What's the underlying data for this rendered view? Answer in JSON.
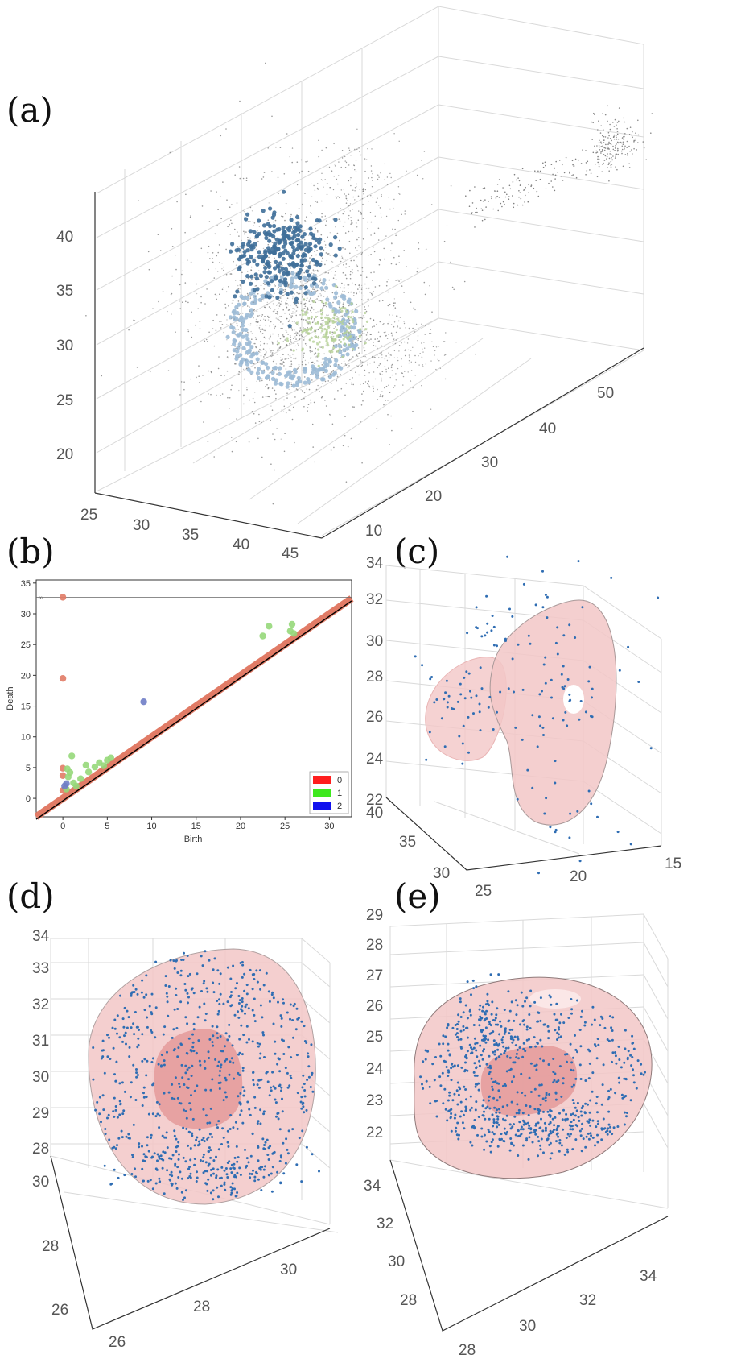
{
  "panels": {
    "a": "(a)",
    "b": "(b)",
    "c": "(c)",
    "d": "(d)",
    "e": "(e)"
  },
  "colors": {
    "gray_points": "#7f7f7f",
    "dark_blue_cluster": "#3f6f99",
    "light_blue_cluster": "#9dbbd6",
    "green_cluster": "#b5d196",
    "shell_fill": "#f2c7c7",
    "inner_fill": "#e49a9a",
    "sample_points": "#2f6db3",
    "dim0": "#e17b66",
    "dim1": "#96d87a",
    "dim2": "#6f7dc6"
  },
  "chart_data": [
    {
      "panel": "a",
      "type": "scatter",
      "z_ticks": [
        "20",
        "25",
        "30",
        "35",
        "40"
      ],
      "x_ticks": [
        "25",
        "30",
        "35",
        "40",
        "45"
      ],
      "y_ticks": [
        "10",
        "20",
        "30",
        "40",
        "50"
      ],
      "series": []
    },
    {
      "panel": "b",
      "type": "scatter",
      "xlabel": "Birth",
      "ylabel": "Death",
      "xlim": [
        -3,
        32.5
      ],
      "ylim": [
        -3,
        35.5
      ],
      "x_ticks": [
        0,
        5,
        10,
        15,
        20,
        25,
        30
      ],
      "y_ticks": [
        0,
        5,
        10,
        15,
        20,
        25,
        30,
        35
      ],
      "infinity_label": "∞",
      "infinity_level": 32.7,
      "legend": {
        "placement": "bottom-right",
        "entries": [
          "0",
          "1",
          "2"
        ]
      },
      "series": [
        {
          "name": "0",
          "color": "#e17b66",
          "points": [
            [
              0,
              32.7
            ],
            [
              0,
              19.5
            ],
            [
              0,
              4.9
            ],
            [
              0,
              3.7
            ],
            [
              0,
              1.3
            ],
            [
              0.3,
              1.6
            ]
          ]
        },
        {
          "name": "1",
          "color": "#96d87a",
          "points": [
            [
              0.5,
              4.8
            ],
            [
              1,
              6.9
            ],
            [
              0.8,
              4.2
            ],
            [
              1.2,
              2.5
            ],
            [
              0.6,
              3.5
            ],
            [
              0.4,
              1.5
            ],
            [
              1.5,
              2.0
            ],
            [
              2,
              3.2
            ],
            [
              2.6,
              5.4
            ],
            [
              2.9,
              4.3
            ],
            [
              3.6,
              5.1
            ],
            [
              4.1,
              5.8
            ],
            [
              5.0,
              6.2
            ],
            [
              5.4,
              6.6
            ],
            [
              4.6,
              5.3
            ],
            [
              22.5,
              26.4
            ],
            [
              23.2,
              28.0
            ],
            [
              25.6,
              27.2
            ],
            [
              25.8,
              28.3
            ],
            [
              26.0,
              26.8
            ]
          ]
        },
        {
          "name": "2",
          "color": "#6f7dc6",
          "points": [
            [
              9.1,
              15.7
            ],
            [
              0.4,
              2.4
            ],
            [
              0.2,
              2.0
            ]
          ]
        }
      ]
    },
    {
      "panel": "c",
      "type": "scatter",
      "z_ticks": [
        "22",
        "24",
        "26",
        "28",
        "30",
        "32",
        "34"
      ],
      "x_ticks": [
        "25",
        "20",
        "15"
      ],
      "y_ticks": [
        "30",
        "35",
        "40"
      ]
    },
    {
      "panel": "d",
      "type": "scatter",
      "z_ticks": [
        "28",
        "29",
        "30",
        "31",
        "32",
        "33",
        "34"
      ],
      "x_ticks": [
        "26",
        "28",
        "30"
      ],
      "y_ticks": [
        "26",
        "28",
        "30"
      ]
    },
    {
      "panel": "e",
      "type": "scatter",
      "z_ticks": [
        "22",
        "23",
        "24",
        "25",
        "26",
        "27",
        "28",
        "29"
      ],
      "x_ticks": [
        "28",
        "30",
        "32",
        "34"
      ],
      "y_ticks": [
        "28",
        "30",
        "32",
        "34"
      ]
    }
  ]
}
